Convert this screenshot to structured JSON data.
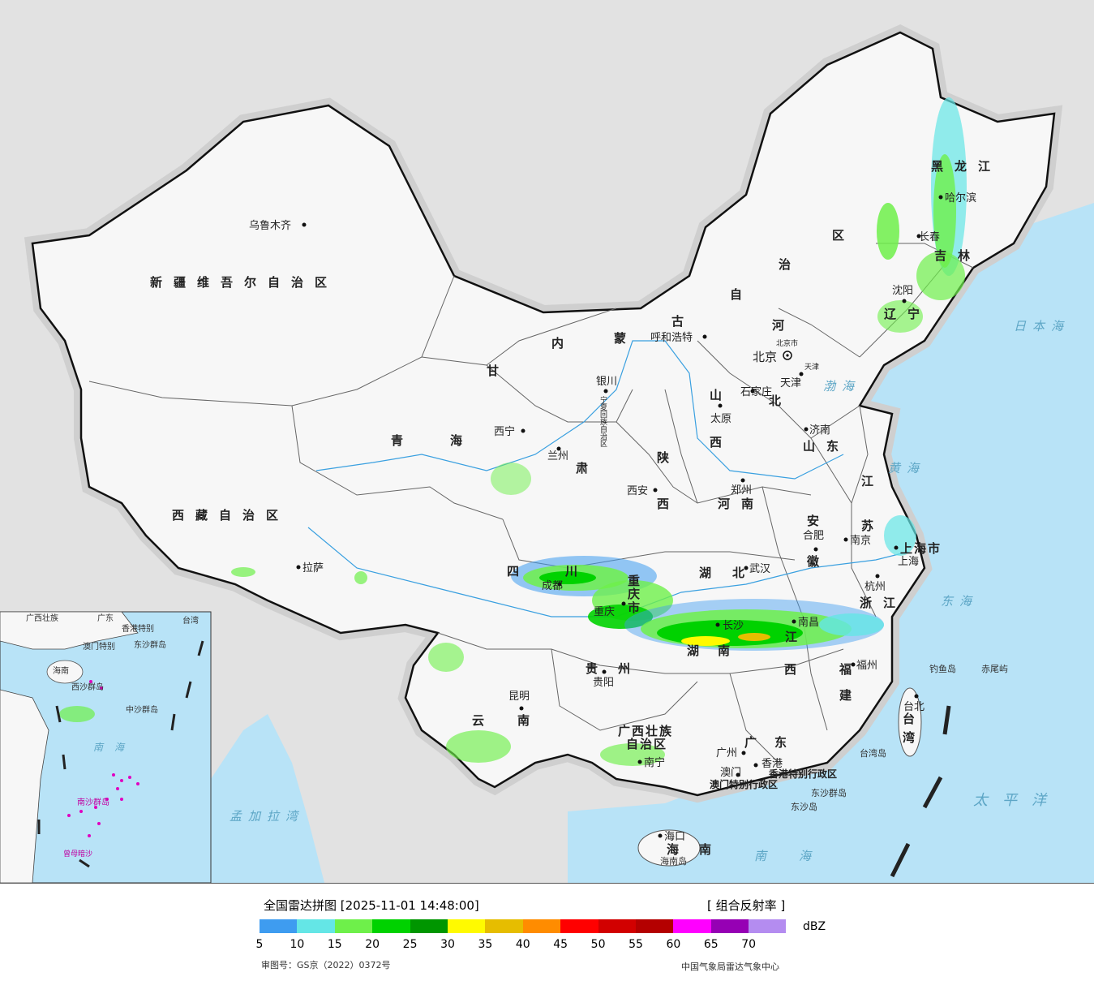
{
  "legend": {
    "title": "全国雷达拼图 [2025-11-01 14:48:00]",
    "product": "[ 组合反射率 ]",
    "unit": "dBZ",
    "colors": [
      "#3e9cf0",
      "#64e6e6",
      "#6ef04a",
      "#00d200",
      "#009600",
      "#fffa00",
      "#e6bd00",
      "#ff8c00",
      "#ff0000",
      "#d20000",
      "#b40000",
      "#ff00ff",
      "#9600b4",
      "#b48cf0"
    ],
    "ticks": [
      "5",
      "10",
      "15",
      "20",
      "25",
      "30",
      "35",
      "40",
      "45",
      "50",
      "55",
      "60",
      "65",
      "70"
    ],
    "approval": "审图号：GS京（2022）0372号",
    "source": "中国气象局雷达气象中心"
  },
  "map": {
    "background": "#e2e2e2",
    "sea_color": "#b8e3f7",
    "land_color": "#f7f7f7",
    "provinces": [
      {
        "name": "新疆维吾尔自治区",
        "id": "xinjiang"
      },
      {
        "name": "西藏自治区",
        "id": "xizang"
      },
      {
        "name": "青海",
        "id": "qinghai"
      },
      {
        "name": "甘",
        "id": "gan"
      },
      {
        "name": "肃",
        "id": "su"
      },
      {
        "name": "内",
        "id": "nei"
      },
      {
        "name": "蒙",
        "id": "meng"
      },
      {
        "name": "古",
        "id": "gu"
      },
      {
        "name": "自",
        "id": "zi"
      },
      {
        "name": "治",
        "id": "zhi"
      },
      {
        "name": "区",
        "id": "qu"
      },
      {
        "name": "黑龙江",
        "id": "heilongjiang"
      },
      {
        "name": "吉林",
        "id": "jilin"
      },
      {
        "name": "辽宁",
        "id": "liaoning"
      },
      {
        "name": "河",
        "id": "he"
      },
      {
        "name": "北",
        "id": "bei"
      },
      {
        "name": "山",
        "id": "shan"
      },
      {
        "name": "西",
        "id": "xi"
      },
      {
        "name": "山东",
        "id": "shandong"
      },
      {
        "name": "陕",
        "id": "shaan"
      },
      {
        "name": "西",
        "id": "shaanxi2"
      },
      {
        "name": "河南",
        "id": "henan"
      },
      {
        "name": "江",
        "id": "jiang"
      },
      {
        "name": "苏",
        "id": "su2"
      },
      {
        "name": "安",
        "id": "an"
      },
      {
        "name": "徽",
        "id": "hui"
      },
      {
        "name": "湖",
        "id": "hu"
      },
      {
        "name": "北",
        "id": "hubei2"
      },
      {
        "name": "四",
        "id": "si"
      },
      {
        "name": "川",
        "id": "chuan"
      },
      {
        "name": "重",
        "id": "chong"
      },
      {
        "name": "庆",
        "id": "qing"
      },
      {
        "name": "市",
        "id": "shi"
      },
      {
        "name": "浙江",
        "id": "zhejiang"
      },
      {
        "name": "湖",
        "id": "hunan1"
      },
      {
        "name": "南",
        "id": "hunan2"
      },
      {
        "name": "江",
        "id": "jiangxi1"
      },
      {
        "name": "西",
        "id": "jiangxi2"
      },
      {
        "name": "福",
        "id": "fu"
      },
      {
        "name": "建",
        "id": "jian"
      },
      {
        "name": "贵",
        "id": "gui"
      },
      {
        "name": "州",
        "id": "zhou"
      },
      {
        "name": "云",
        "id": "yun"
      },
      {
        "name": "南",
        "id": "nan"
      },
      {
        "name": "广西壮族",
        "id": "guangxi1"
      },
      {
        "name": "自治区",
        "id": "guangxi2"
      },
      {
        "name": "广",
        "id": "guang"
      },
      {
        "name": "东",
        "id": "dong"
      },
      {
        "name": "台",
        "id": "tai"
      },
      {
        "name": "湾",
        "id": "wan"
      },
      {
        "name": "海",
        "id": "hai"
      },
      {
        "name": "南",
        "id": "hainan2"
      },
      {
        "name": "上海市",
        "id": "shanghai"
      },
      {
        "name": "宁夏回族自治区",
        "id": "ningxia"
      }
    ],
    "cities": [
      {
        "name": "乌鲁木齐",
        "id": "urumqi"
      },
      {
        "name": "拉萨",
        "id": "lhasa"
      },
      {
        "name": "西宁",
        "id": "xining"
      },
      {
        "name": "兰州",
        "id": "lanzhou"
      },
      {
        "name": "银川",
        "id": "yinchuan"
      },
      {
        "name": "呼和浩特",
        "id": "hohhot"
      },
      {
        "name": "北京",
        "id": "beijing"
      },
      {
        "name": "北京市",
        "id": "beijing-small"
      },
      {
        "name": "天津",
        "id": "tianjin"
      },
      {
        "name": "天津",
        "id": "tianjin-small"
      },
      {
        "name": "石家庄",
        "id": "shijiazhuang"
      },
      {
        "name": "太原",
        "id": "taiyuan"
      },
      {
        "name": "济南",
        "id": "jinan"
      },
      {
        "name": "郑州",
        "id": "zhengzhou"
      },
      {
        "name": "西安",
        "id": "xian"
      },
      {
        "name": "合肥",
        "id": "hefei"
      },
      {
        "name": "南京",
        "id": "nanjing"
      },
      {
        "name": "上海",
        "id": "shanghai-city"
      },
      {
        "name": "杭州",
        "id": "hangzhou"
      },
      {
        "name": "武汉",
        "id": "wuhan"
      },
      {
        "name": "成都",
        "id": "chengdu"
      },
      {
        "name": "重庆",
        "id": "chongqing"
      },
      {
        "name": "长沙",
        "id": "changsha"
      },
      {
        "name": "南昌",
        "id": "nanchang"
      },
      {
        "name": "福州",
        "id": "fuzhou"
      },
      {
        "name": "台北",
        "id": "taipei"
      },
      {
        "name": "贵阳",
        "id": "guiyang"
      },
      {
        "name": "昆明",
        "id": "kunming"
      },
      {
        "name": "南宁",
        "id": "nanning"
      },
      {
        "name": "广州",
        "id": "guangzhou"
      },
      {
        "name": "香港",
        "id": "hongkong"
      },
      {
        "name": "澳门",
        "id": "macau"
      },
      {
        "name": "海口",
        "id": "haikou"
      },
      {
        "name": "哈尔滨",
        "id": "harbin"
      },
      {
        "name": "长春",
        "id": "changchun"
      },
      {
        "name": "沈阳",
        "id": "shenyang"
      }
    ],
    "seas": [
      {
        "name": "日本海",
        "id": "japan-sea"
      },
      {
        "name": "渤海",
        "id": "bohai"
      },
      {
        "name": "黄海",
        "id": "yellow-sea"
      },
      {
        "name": "东海",
        "id": "east-sea"
      },
      {
        "name": "太平洋",
        "id": "pacific"
      },
      {
        "name": "南海",
        "id": "south-sea"
      },
      {
        "name": "孟加拉湾",
        "id": "bengal"
      }
    ],
    "islands": [
      {
        "name": "钓鱼岛",
        "id": "diaoyu"
      },
      {
        "name": "赤尾屿",
        "id": "chiwei"
      },
      {
        "name": "台湾岛",
        "id": "taiwan-island"
      },
      {
        "name": "东沙群岛",
        "id": "dongsha-islands"
      },
      {
        "name": "东沙岛",
        "id": "dongsha"
      },
      {
        "name": "海南岛",
        "id": "hainan-island"
      },
      {
        "name": "香港特别行政区",
        "id": "hk-sar"
      },
      {
        "name": "澳门特别行政区",
        "id": "macau-sar"
      }
    ],
    "inset": {
      "labels": [
        {
          "name": "广西壮族",
          "id": "inset-guangxi"
        },
        {
          "name": "广东",
          "id": "inset-guangdong"
        },
        {
          "name": "香港特别",
          "id": "inset-hk"
        },
        {
          "name": "澳门特别",
          "id": "inset-macau"
        },
        {
          "name": "台湾",
          "id": "inset-taiwan"
        },
        {
          "name": "东沙群岛",
          "id": "inset-dongsha"
        },
        {
          "name": "海南",
          "id": "inset-hainan"
        },
        {
          "name": "西沙群岛",
          "id": "inset-xisha"
        },
        {
          "name": "中沙群岛",
          "id": "inset-zhongsha"
        },
        {
          "name": "南海",
          "id": "inset-south-sea"
        },
        {
          "name": "南沙群岛",
          "id": "inset-nansha"
        },
        {
          "name": "曾母暗沙",
          "id": "inset-zengmu"
        }
      ]
    }
  }
}
